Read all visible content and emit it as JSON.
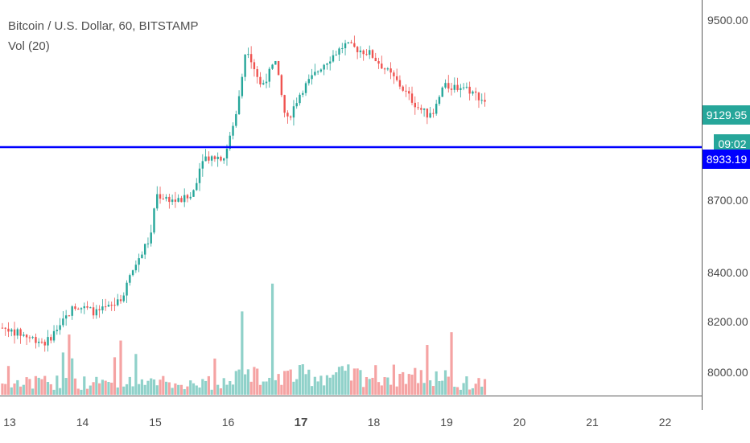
{
  "legend": {
    "symbol": "Bitcoin / U.S. Dollar, 60, BITSTAMP",
    "volume": "Vol (20)"
  },
  "colors": {
    "up": "#26a69a",
    "down": "#ef5350",
    "vol_up": "#8fd1c9",
    "vol_down": "#f5a3a3",
    "hline": "#0000ff"
  },
  "price_axis": {
    "ticks": [
      "9500.00",
      "8700.00",
      "8400.00",
      "8200.00",
      "8000.00"
    ]
  },
  "time_axis": {
    "ticks": [
      "13",
      "14",
      "15",
      "16",
      "17",
      "18",
      "19",
      "20",
      "21",
      "22"
    ],
    "bold": [
      "17"
    ]
  },
  "badges": {
    "last_price": "9129.95",
    "countdown": "09:02",
    "line_price": "8933.19"
  },
  "chart_data": {
    "type": "candlestick",
    "title": "Bitcoin / U.S. Dollar, 60, BITSTAMP",
    "x_label_unit": "day of month",
    "scale": "log",
    "ylim": [
      7920,
      9560
    ],
    "horizontal_line": 8933.19,
    "last_price": 9129.95,
    "x_range": [
      12.9,
      22.6
    ],
    "key_points": [
      {
        "day": 12.9,
        "price": 8180
      },
      {
        "day": 13.2,
        "price": 8150
      },
      {
        "day": 13.5,
        "price": 8120
      },
      {
        "day": 13.9,
        "price": 8270
      },
      {
        "day": 14.2,
        "price": 8240
      },
      {
        "day": 14.5,
        "price": 8280
      },
      {
        "day": 14.75,
        "price": 8450
      },
      {
        "day": 14.95,
        "price": 8560
      },
      {
        "day": 15.0,
        "price": 8730
      },
      {
        "day": 15.3,
        "price": 8700
      },
      {
        "day": 15.5,
        "price": 8720
      },
      {
        "day": 15.65,
        "price": 8890
      },
      {
        "day": 15.95,
        "price": 8890
      },
      {
        "day": 16.1,
        "price": 9060
      },
      {
        "day": 16.25,
        "price": 9390
      },
      {
        "day": 16.45,
        "price": 9200
      },
      {
        "day": 16.65,
        "price": 9310
      },
      {
        "day": 16.8,
        "price": 9040
      },
      {
        "day": 17.0,
        "price": 9180
      },
      {
        "day": 17.3,
        "price": 9300
      },
      {
        "day": 17.6,
        "price": 9390
      },
      {
        "day": 17.95,
        "price": 9350
      },
      {
        "day": 18.3,
        "price": 9230
      },
      {
        "day": 18.6,
        "price": 9110
      },
      {
        "day": 18.8,
        "price": 9060
      },
      {
        "day": 18.95,
        "price": 9200
      },
      {
        "day": 19.25,
        "price": 9200
      },
      {
        "day": 19.55,
        "price": 9130
      }
    ]
  }
}
